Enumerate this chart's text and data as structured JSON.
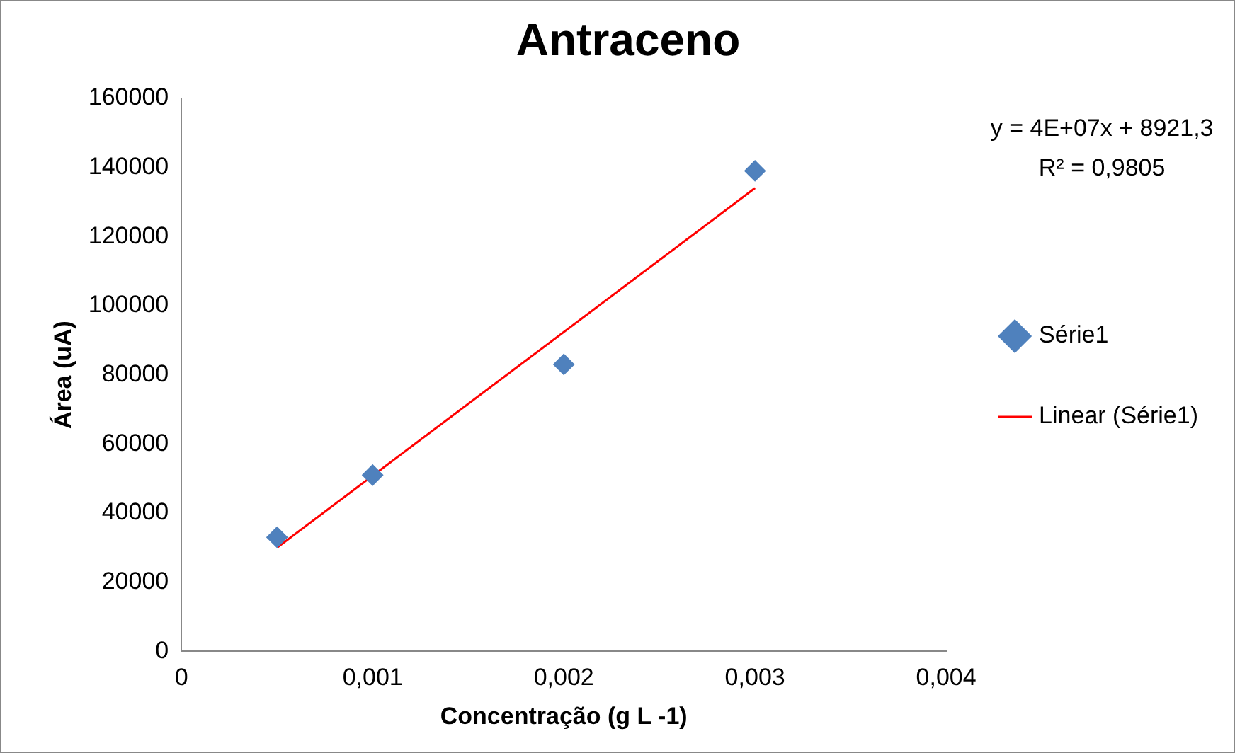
{
  "chart_data": {
    "type": "scatter",
    "title": "Antraceno",
    "xlabel": "Concentração (g L -1)",
    "ylabel": "Área (uA)",
    "x": [
      0.0005,
      0.001,
      0.002,
      0.003
    ],
    "series": [
      {
        "name": "Série1",
        "type": "scatter",
        "color": "#4f81bd",
        "marker": "diamond",
        "values": [
          33000,
          51000,
          83000,
          139000
        ]
      },
      {
        "name": "Linear (Série1)",
        "type": "line",
        "color": "#ff0000",
        "marker": "none",
        "x": [
          0.0005,
          0.003
        ],
        "values": [
          30000,
          134000
        ]
      }
    ],
    "xlim": [
      0,
      0.004
    ],
    "xticks": [
      0,
      {
        "value": 0.001,
        "label": "0,001"
      },
      {
        "value": 0.002,
        "label": "0,002"
      },
      {
        "value": 0.003,
        "label": "0,003"
      },
      {
        "value": 0.004,
        "label": "0,004"
      }
    ],
    "ylim": [
      0,
      160000
    ],
    "yticks": [
      0,
      20000,
      40000,
      60000,
      80000,
      100000,
      120000,
      140000,
      160000
    ],
    "grid": false,
    "legend": "right",
    "annotations": [
      "y = 4E+07x + 8921,3",
      "R² = 0,9805"
    ]
  }
}
